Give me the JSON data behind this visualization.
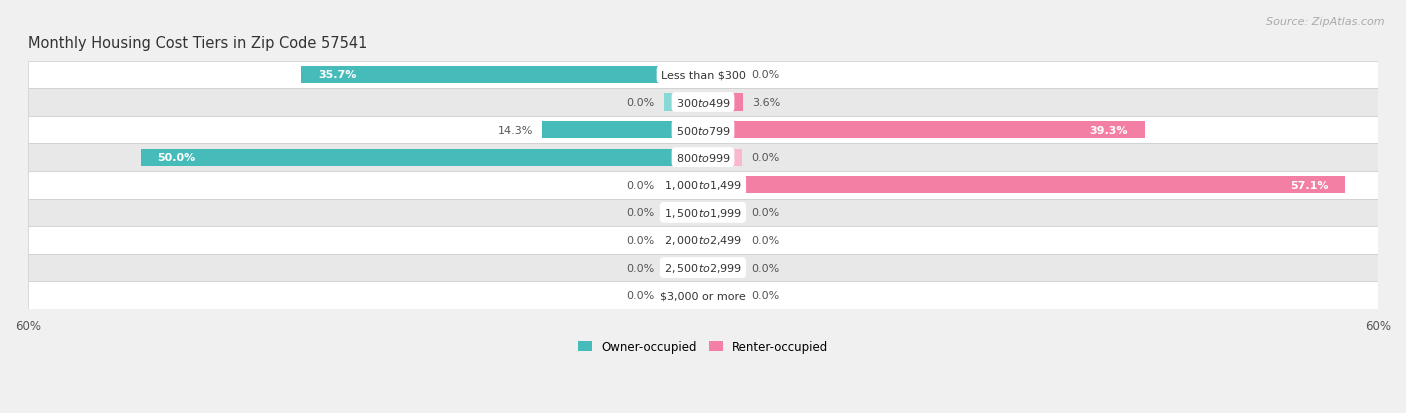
{
  "title": "Monthly Housing Cost Tiers in Zip Code 57541",
  "source": "Source: ZipAtlas.com",
  "categories": [
    "Less than $300",
    "$300 to $499",
    "$500 to $799",
    "$800 to $999",
    "$1,000 to $1,499",
    "$1,500 to $1,999",
    "$2,000 to $2,499",
    "$2,500 to $2,999",
    "$3,000 or more"
  ],
  "owner_values": [
    35.7,
    0.0,
    14.3,
    50.0,
    0.0,
    0.0,
    0.0,
    0.0,
    0.0
  ],
  "renter_values": [
    0.0,
    3.6,
    39.3,
    0.0,
    57.1,
    0.0,
    0.0,
    0.0,
    0.0
  ],
  "owner_color": "#45BCBA",
  "owner_color_light": "#88D8D6",
  "renter_color": "#F47FA4",
  "renter_color_light": "#F9B8CB",
  "owner_label": "Owner-occupied",
  "renter_label": "Renter-occupied",
  "xlim": [
    -60,
    60
  ],
  "min_stub": 3.5,
  "bar_height": 0.62,
  "background_color": "#f0f0f0",
  "row_bg_white": "#ffffff",
  "row_bg_gray": "#e8e8e8",
  "row_border": "#cccccc",
  "title_fontsize": 10.5,
  "source_fontsize": 8,
  "cat_label_fontsize": 8,
  "value_fontsize": 8,
  "tick_fontsize": 8.5
}
